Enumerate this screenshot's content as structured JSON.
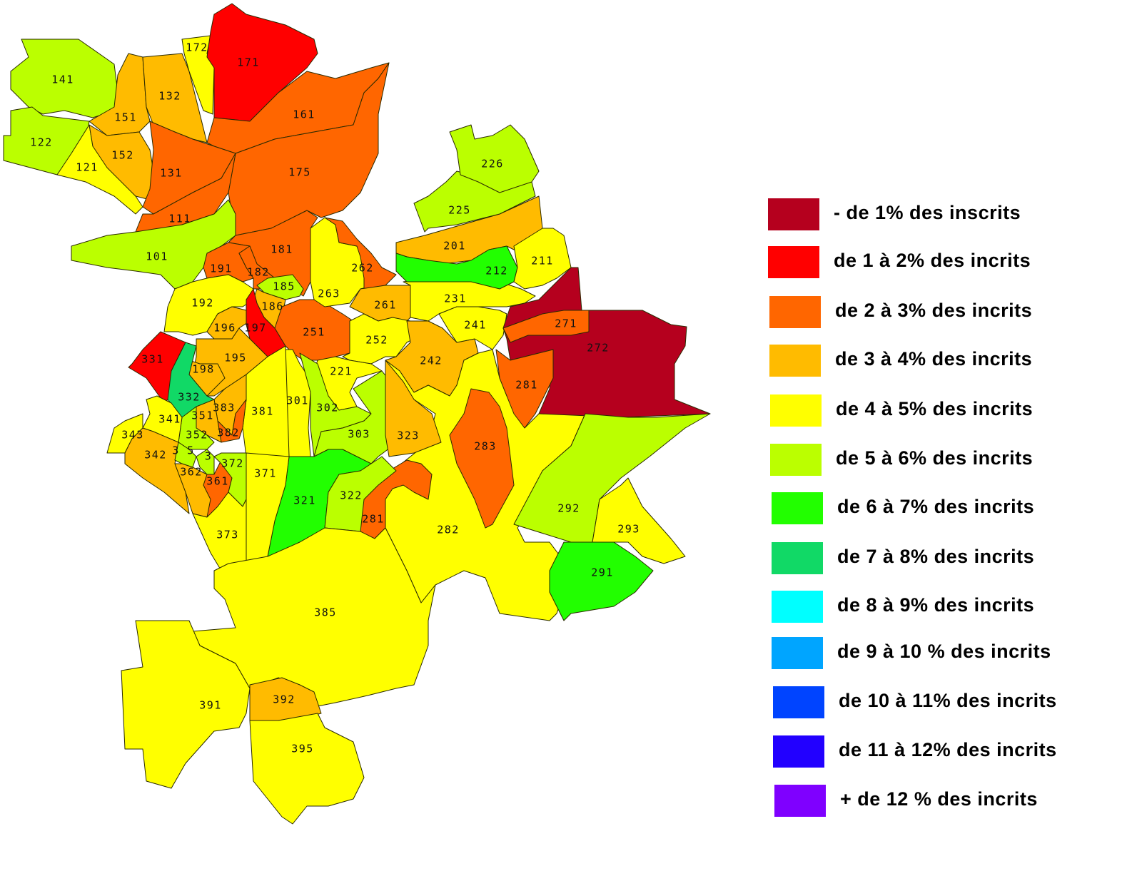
{
  "legend": {
    "items": [
      {
        "label": "- de 1% des inscrits",
        "color": "#b5001e"
      },
      {
        "label": "de 1 à 2% des incrits",
        "color": "#ff0000"
      },
      {
        "label": "de 2 à 3% des incrits",
        "color": "#ff6600"
      },
      {
        "label": "de 3 à 4% des incrits",
        "color": "#ffbb00"
      },
      {
        "label": "de 4 à 5% des incrits",
        "color": "#ffff00"
      },
      {
        "label": "de 5 à 6% des incrits",
        "color": "#bbff00"
      },
      {
        "label": "de 6 à 7% des incrits",
        "color": "#22ff00"
      },
      {
        "label": "de 7 à 8% des incrits",
        "color": "#11d966"
      },
      {
        "label": "de 8 à 9% des incrits",
        "color": "#00ffff"
      },
      {
        "label": "de 9 à 10 % des incrits",
        "color": "#00a5ff"
      },
      {
        "label": "de 10 à 11% des incrits",
        "color": "#0044ff"
      },
      {
        "label": "de 11 à 12% des incrits",
        "color": "#2200ff"
      },
      {
        "label": "+ de 12  % des incrits",
        "color": "#7f00ff"
      }
    ]
  },
  "map": {
    "regions": [
      {
        "label": "141",
        "class": 5
      },
      {
        "label": "122",
        "class": 5
      },
      {
        "label": "121",
        "class": 4
      },
      {
        "label": "151",
        "class": 3
      },
      {
        "label": "152",
        "class": 3
      },
      {
        "label": "132",
        "class": 3
      },
      {
        "label": "172",
        "class": 4
      },
      {
        "label": "171",
        "class": 1
      },
      {
        "label": "161",
        "class": 2
      },
      {
        "label": "131",
        "class": 2
      },
      {
        "label": "175",
        "class": 2
      },
      {
        "label": "111",
        "class": 2
      },
      {
        "label": "101",
        "class": 5
      },
      {
        "label": "181",
        "class": 2
      },
      {
        "label": "191",
        "class": 2
      },
      {
        "label": "182",
        "class": 2
      },
      {
        "label": "185",
        "class": 5
      },
      {
        "label": "186",
        "class": 3
      },
      {
        "label": "192",
        "class": 4
      },
      {
        "label": "196",
        "class": 3
      },
      {
        "label": "197",
        "class": 1
      },
      {
        "label": "195",
        "class": 3
      },
      {
        "label": "198",
        "class": 3
      },
      {
        "label": "331",
        "class": 1
      },
      {
        "label": "332",
        "class": 7
      },
      {
        "label": "251",
        "class": 2
      },
      {
        "label": "263",
        "class": 4
      },
      {
        "label": "262",
        "class": 2
      },
      {
        "label": "261",
        "class": 3
      },
      {
        "label": "252",
        "class": 4
      },
      {
        "label": "221",
        "class": 4
      },
      {
        "label": "231",
        "class": 4
      },
      {
        "label": "242",
        "class": 3
      },
      {
        "label": "241",
        "class": 4
      },
      {
        "label": "201",
        "class": 3
      },
      {
        "label": "212",
        "class": 6
      },
      {
        "label": "211",
        "class": 4
      },
      {
        "label": "225",
        "class": 5
      },
      {
        "label": "226",
        "class": 5
      },
      {
        "label": "282",
        "class": 4
      },
      {
        "label": "272",
        "class": 0
      },
      {
        "label": "271",
        "class": 2
      },
      {
        "label": "281",
        "class": 2
      },
      {
        "label": "283",
        "class": 2
      },
      {
        "label": "292",
        "class": 5
      },
      {
        "label": "293",
        "class": 4
      },
      {
        "label": "291",
        "class": 6
      },
      {
        "label": "281",
        "class": 2
      },
      {
        "label": "301",
        "class": 4
      },
      {
        "label": "302",
        "class": 5
      },
      {
        "label": "303",
        "class": 5
      },
      {
        "label": "323",
        "class": 3
      },
      {
        "label": "321",
        "class": 6
      },
      {
        "label": "322",
        "class": 5
      },
      {
        "label": "381",
        "class": 4
      },
      {
        "label": "383",
        "class": 3
      },
      {
        "label": "382",
        "class": 2
      },
      {
        "label": "351",
        "class": 3
      },
      {
        "label": "352",
        "class": 5
      },
      {
        "label": "341",
        "class": 4
      },
      {
        "label": "343",
        "class": 4
      },
      {
        "label": "342",
        "class": 3
      },
      {
        "label": "3 5",
        "class": 5
      },
      {
        "label": "3",
        "class": 5
      },
      {
        "label": "362",
        "class": 3
      },
      {
        "label": "361",
        "class": 2
      },
      {
        "label": "372",
        "class": 5
      },
      {
        "label": "371",
        "class": 4
      },
      {
        "label": "373",
        "class": 4
      },
      {
        "label": "385",
        "class": 4
      },
      {
        "label": "391",
        "class": 4
      },
      {
        "label": "392",
        "class": 3
      },
      {
        "label": "395",
        "class": 4
      }
    ]
  }
}
